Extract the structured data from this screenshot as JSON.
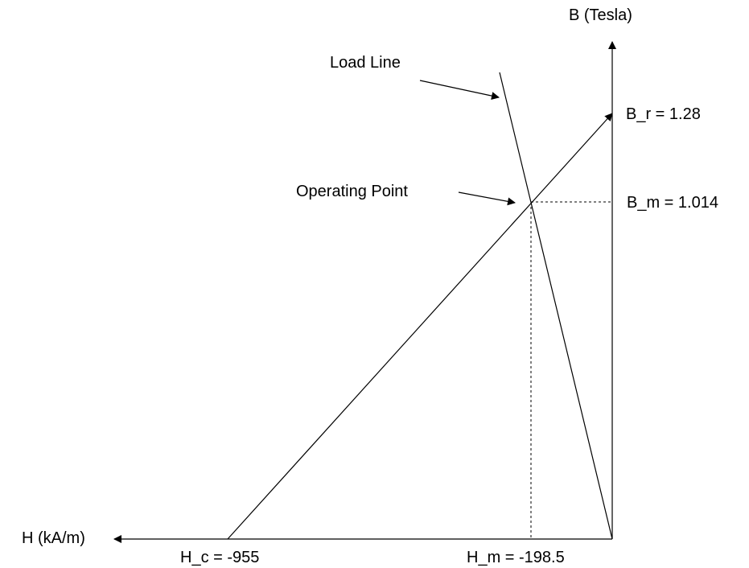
{
  "axes": {
    "vertical_label": "B (Tesla)",
    "horizontal_label": "H (kA/m)"
  },
  "annotations": {
    "load_line": "Load Line",
    "operating_point": "Operating Point"
  },
  "values": {
    "br_label": "B_r = 1.28",
    "bm_label": "B_m = 1.014",
    "hc_label": "H_c = -955",
    "hm_label": "H_m = -198.5"
  },
  "colors": {
    "stroke": "#000000",
    "background": "#ffffff"
  }
}
